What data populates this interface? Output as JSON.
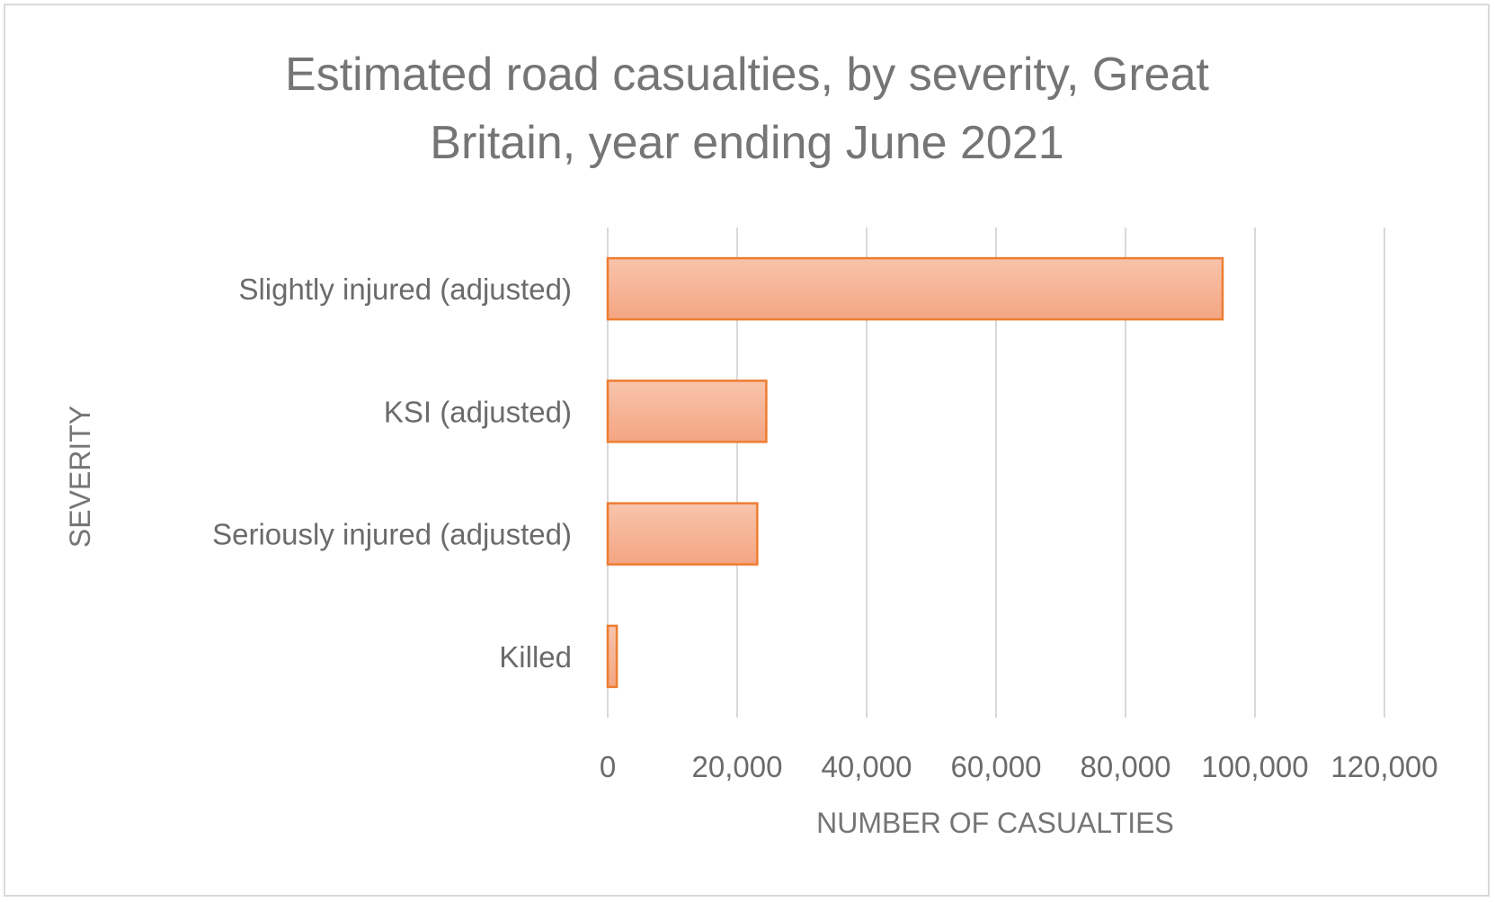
{
  "chart_data": {
    "type": "bar",
    "orientation": "horizontal",
    "title_lines": [
      "Estimated road casualties, by severity, Great",
      "Britain, year ending June 2021"
    ],
    "xlabel": "NUMBER OF CASUALTIES",
    "ylabel": "SEVERITY",
    "categories": [
      "Slightly injured (adjusted)",
      "KSI (adjusted)",
      "Seriously injured (adjusted)",
      "Killed"
    ],
    "values": [
      95000,
      24500,
      23100,
      1400
    ],
    "xlim": [
      0,
      120000
    ],
    "ticks": [
      0,
      20000,
      40000,
      60000,
      80000,
      100000,
      120000
    ],
    "tick_labels": [
      "0",
      "20,000",
      "40,000",
      "60,000",
      "80,000",
      "100,000",
      "120,000"
    ],
    "grid": true,
    "bar_color": "#f4a582",
    "bar_border_color": "#ed7d31"
  }
}
